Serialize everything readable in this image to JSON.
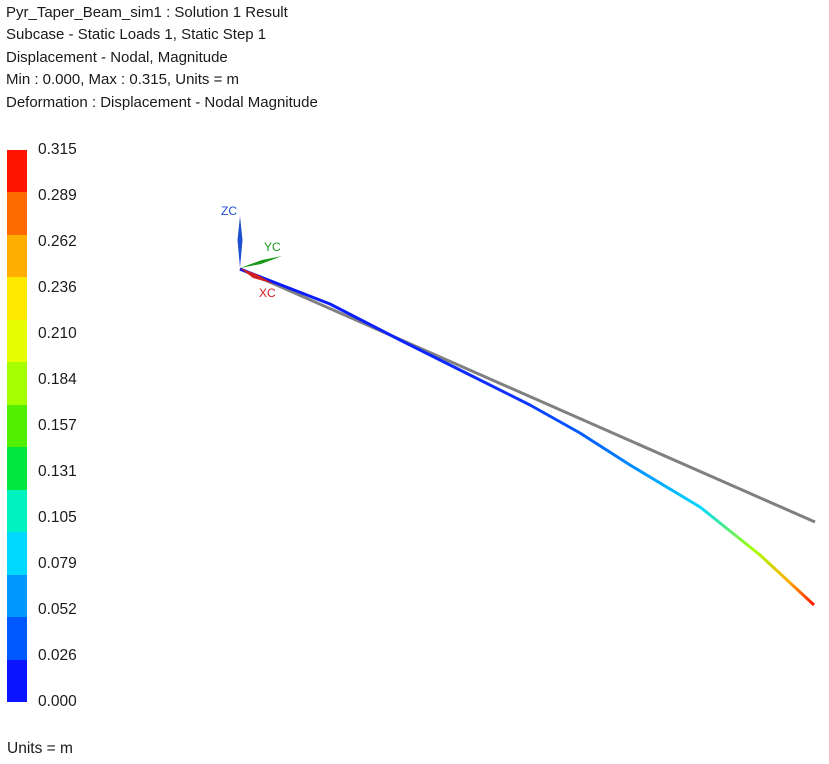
{
  "header": {
    "title": "Pyr_Taper_Beam_sim1 : Solution 1 Result",
    "subcase": "Subcase - Static Loads 1, Static Step 1",
    "result_type": "Displacement - Nodal, Magnitude",
    "range": "Min : 0.000, Max : 0.315, Units = m",
    "deformation": "Deformation : Displacement - Nodal Magnitude"
  },
  "legend": {
    "labels": [
      "0.315",
      "0.289",
      "0.262",
      "0.236",
      "0.210",
      "0.184",
      "0.157",
      "0.131",
      "0.105",
      "0.079",
      "0.052",
      "0.026",
      "0.000"
    ],
    "colors": [
      "#ff1400",
      "#ff6a00",
      "#ffad00",
      "#ffe800",
      "#e6ff00",
      "#a6ff00",
      "#52f000",
      "#00e840",
      "#00f2c0",
      "#00d8ff",
      "#0098ff",
      "#0058ff",
      "#0a14ff"
    ],
    "min": 0.0,
    "max": 0.315
  },
  "footer": {
    "units": "Units = m"
  },
  "triad": {
    "zc": {
      "label": "ZC",
      "color": "#1e50d0"
    },
    "yc": {
      "label": "YC",
      "color": "#1a9a1a"
    },
    "xc": {
      "label": "XC",
      "color": "#d02020"
    }
  },
  "model": {
    "undeformed_color": "#808080",
    "nodal_magnitudes": [
      0.0,
      0.03,
      0.05,
      0.09,
      0.15,
      0.315
    ]
  }
}
